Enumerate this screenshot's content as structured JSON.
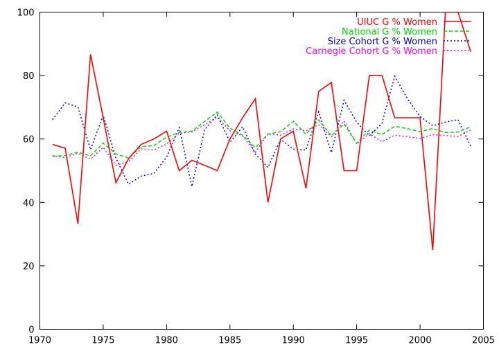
{
  "chart_data": {
    "type": "line",
    "title": "",
    "xlabel": "",
    "ylabel": "",
    "xlim": [
      1970,
      2005
    ],
    "ylim": [
      0,
      100
    ],
    "x_ticks": [
      1970,
      1975,
      1980,
      1985,
      1990,
      1995,
      2000,
      2005
    ],
    "y_ticks": [
      0,
      20,
      40,
      60,
      80,
      100
    ],
    "legend_position": "top-right",
    "grid": false,
    "x": [
      1971,
      1972,
      1973,
      1974,
      1975,
      1976,
      1977,
      1978,
      1979,
      1980,
      1981,
      1982,
      1983,
      1984,
      1985,
      1986,
      1987,
      1988,
      1989,
      1990,
      1991,
      1992,
      1993,
      1994,
      1995,
      1996,
      1997,
      1998,
      1999,
      2000,
      2001,
      2002,
      2003,
      2004
    ],
    "series": [
      {
        "name": "UIUC G % Women",
        "color": "#ff0000",
        "style": "solid",
        "values": [
          58.3,
          57.1,
          33.3,
          86.7,
          66.7,
          46.2,
          53.8,
          58.3,
          60.0,
          62.5,
          50.0,
          53.3,
          51.7,
          50.0,
          60.0,
          66.7,
          72.7,
          40.0,
          60.0,
          62.5,
          44.4,
          75.0,
          77.8,
          50.0,
          50.0,
          80.0,
          80.0,
          66.7,
          66.7,
          66.7,
          25.0,
          100.0,
          100.0,
          87.5
        ]
      },
      {
        "name": "National G % Women",
        "color": "#00dd00",
        "style": "dashed",
        "values": [
          54.5,
          54.8,
          55.8,
          54.7,
          58.7,
          55.3,
          54.0,
          57.6,
          57.9,
          60.6,
          62.0,
          62.5,
          65.5,
          68.5,
          63.4,
          61.2,
          57.2,
          61.6,
          62.3,
          65.6,
          61.5,
          66.0,
          61.0,
          64.8,
          58.6,
          62.8,
          61.4,
          64.0,
          63.3,
          62.3,
          63.3,
          62.0,
          62.2,
          63.8
        ]
      },
      {
        "name": "Size Cohort G % Women",
        "color": "#0000dd",
        "style": "dotted",
        "values": [
          66.1,
          71.4,
          70.1,
          56.6,
          67.5,
          54.0,
          45.7,
          48.3,
          49.1,
          54.3,
          63.6,
          45.0,
          62.9,
          67.6,
          59.0,
          63.8,
          55.3,
          51.0,
          59.9,
          56.8,
          56.5,
          68.6,
          55.7,
          72.2,
          65.3,
          61.0,
          65.0,
          79.8,
          72.7,
          67.1,
          64.2,
          65.3,
          66.1,
          57.7
        ]
      },
      {
        "name": "Carnegie Cohort G % Women",
        "color": "#ff00ff",
        "style": "dotted",
        "values": [
          54.8,
          54.1,
          55.5,
          53.6,
          57.4,
          51.7,
          52.9,
          56.9,
          56.5,
          58.4,
          61.8,
          62.2,
          64.5,
          66.9,
          62.6,
          61.0,
          55.8,
          61.6,
          61.2,
          63.2,
          62.6,
          64.5,
          60.7,
          65.7,
          58.4,
          61.7,
          59.1,
          61.2,
          60.7,
          60.2,
          61.4,
          61.1,
          60.8,
          62.8
        ]
      }
    ]
  }
}
